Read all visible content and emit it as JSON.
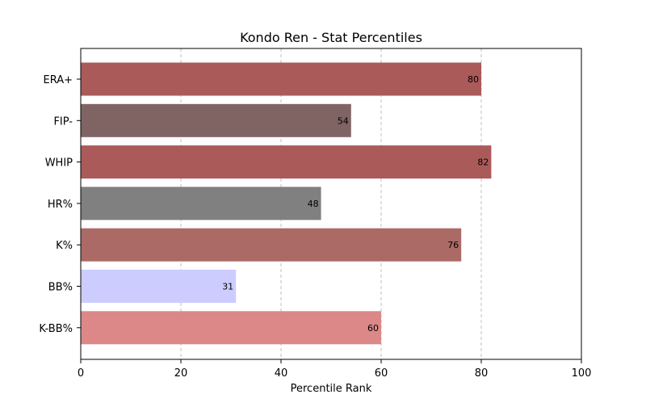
{
  "chart_data": {
    "type": "bar",
    "orientation": "horizontal",
    "title": "Kondo Ren - Stat Percentiles",
    "xlabel": "Percentile Rank",
    "ylabel": "",
    "xlim": [
      0,
      100
    ],
    "xticks": [
      0,
      20,
      40,
      60,
      80,
      100
    ],
    "grid": "x-dashed",
    "categories": [
      "ERA+",
      "FIP-",
      "WHIP",
      "HR%",
      "K%",
      "BB%",
      "K-BB%"
    ],
    "values": [
      80,
      54,
      82,
      48,
      76,
      31,
      60
    ],
    "data_labels": [
      "80",
      "54",
      "82",
      "48",
      "76",
      "31",
      "60"
    ],
    "colors": [
      "#ab5a5a",
      "#806464",
      "#ab5a5a",
      "#808080",
      "#ab6a66",
      "#ccccff",
      "#dc8888"
    ]
  }
}
